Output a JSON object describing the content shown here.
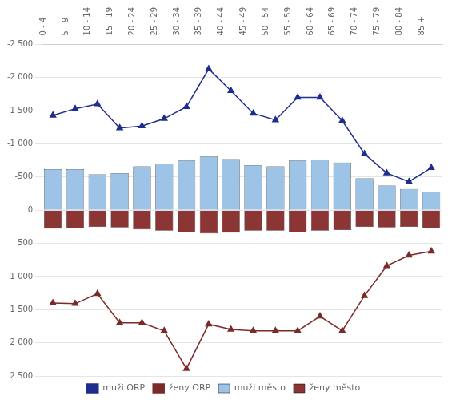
{
  "chart_data": {
    "type": "bar",
    "categories": [
      "0 - 4",
      "5 - 9",
      "10 - 14",
      "15 - 19",
      "20 - 24",
      "25 - 29",
      "30 - 34",
      "35 - 39",
      "40 - 44",
      "45 - 49",
      "50 - 54",
      "55 - 59",
      "60 - 64",
      "65 - 69",
      "70 - 74",
      "75 - 79",
      "80 - 84",
      "85 +"
    ],
    "series": [
      {
        "name": "muži město",
        "type": "bar",
        "color": "#9DC3E6",
        "values": [
          -620,
          -620,
          -540,
          -560,
          -660,
          -700,
          -750,
          -810,
          -770,
          -680,
          -660,
          -750,
          -760,
          -720,
          -480,
          -370,
          -320,
          -280
        ]
      },
      {
        "name": "ženy město",
        "type": "bar",
        "color": "#8B3535",
        "values": [
          280,
          270,
          250,
          260,
          290,
          310,
          330,
          350,
          340,
          310,
          310,
          330,
          310,
          300,
          250,
          260,
          250,
          270
        ]
      },
      {
        "name": "muži ORP",
        "type": "line",
        "color": "#1F2D8C",
        "marker": "triangle",
        "values": [
          -1430,
          -1530,
          -1600,
          -1240,
          -1270,
          -1380,
          -1560,
          -2130,
          -1800,
          -1460,
          -1360,
          -1700,
          -1700,
          -1350,
          -850,
          -560,
          -430,
          -640
        ]
      },
      {
        "name": "ženy ORP",
        "type": "line",
        "color": "#7B2A2A",
        "marker": "triangle",
        "values": [
          1400,
          1410,
          1260,
          1700,
          1700,
          1820,
          2390,
          1720,
          1800,
          1820,
          1820,
          1820,
          1600,
          1820,
          1290,
          840,
          680,
          620
        ]
      }
    ],
    "ylim": [
      2500,
      -2500
    ],
    "yticks": [
      {
        "value": -2500,
        "label": "-2 500"
      },
      {
        "value": -2000,
        "label": "-2 000"
      },
      {
        "value": -1500,
        "label": "-1 500"
      },
      {
        "value": -1000,
        "label": "-1 000"
      },
      -500,
      0,
      500,
      {
        "value": 1000,
        "label": "1 000"
      },
      {
        "value": 1500,
        "label": "1 500"
      },
      {
        "value": 2000,
        "label": "2 000"
      },
      {
        "value": 2500,
        "label": "2 500"
      }
    ],
    "grid": true,
    "legend": "bottom"
  }
}
